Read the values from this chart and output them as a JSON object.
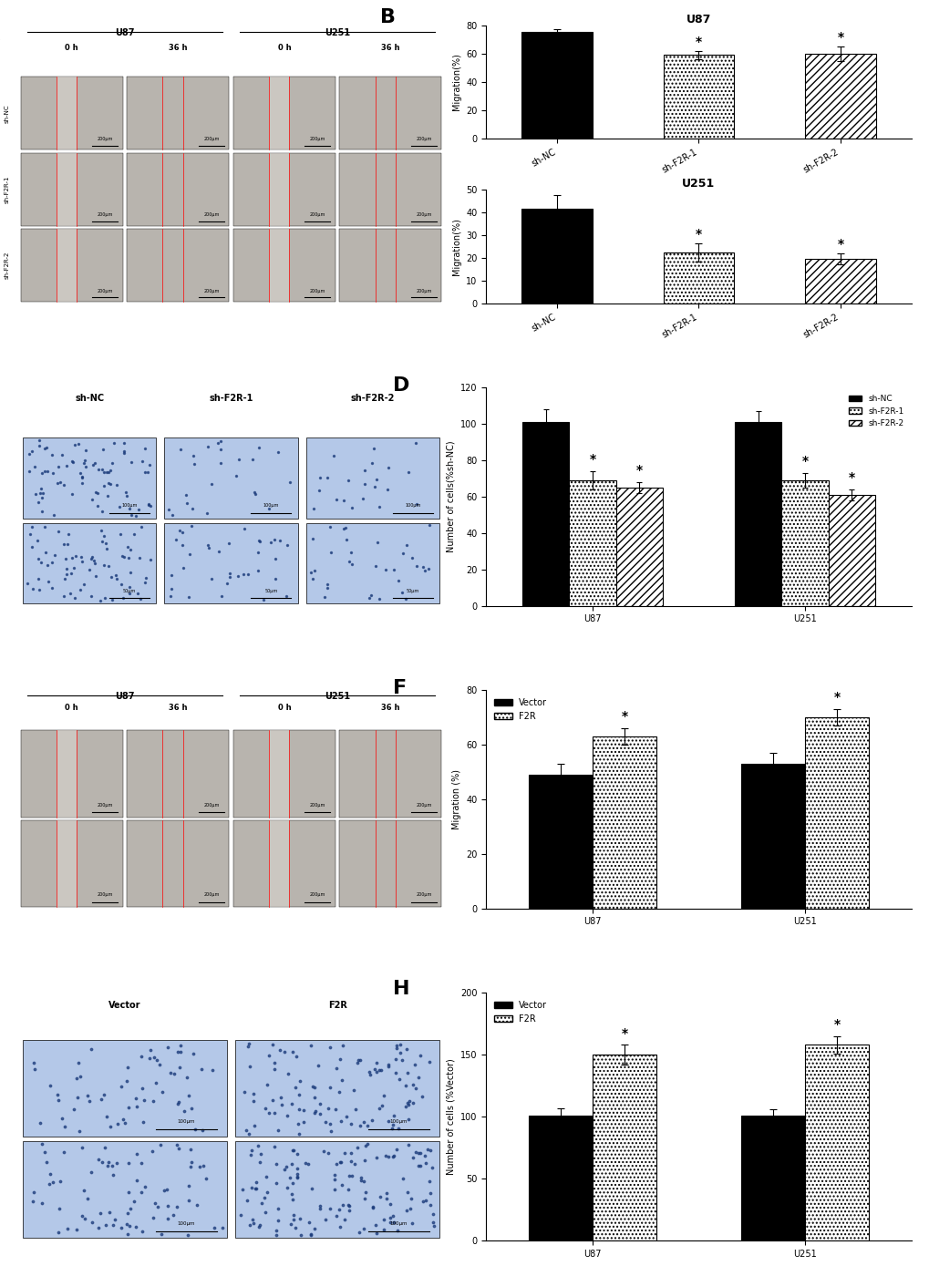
{
  "panel_B_U87": {
    "categories": [
      "sh-NC",
      "sh-F2R-1",
      "sh-F2R-2"
    ],
    "values": [
      75.5,
      59.0,
      60.0
    ],
    "errors": [
      1.5,
      3.0,
      5.0
    ],
    "ylabel": "Migration(%)",
    "title": "U87",
    "ylim": [
      0,
      80
    ],
    "yticks": [
      0,
      20,
      40,
      60,
      80
    ],
    "sig": [
      false,
      true,
      true
    ]
  },
  "panel_B_U251": {
    "categories": [
      "sh-NC",
      "sh-F2R-1",
      "sh-F2R-2"
    ],
    "values": [
      41.5,
      22.5,
      19.5
    ],
    "errors": [
      6.0,
      4.0,
      2.5
    ],
    "ylabel": "Migration(%)",
    "title": "U251",
    "ylim": [
      0,
      50
    ],
    "yticks": [
      0,
      10,
      20,
      30,
      40,
      50
    ],
    "sig": [
      false,
      true,
      true
    ]
  },
  "panel_D": {
    "groups": [
      "U87",
      "U251"
    ],
    "categories": [
      "sh-NC",
      "sh-F2R-1",
      "sh-F2R-2"
    ],
    "values_u87": [
      101,
      69,
      65
    ],
    "values_u251": [
      101,
      69,
      61
    ],
    "errors_u87": [
      7,
      5,
      3
    ],
    "errors_u251": [
      6,
      4,
      3
    ],
    "ylabel": "Number of cells(%sh-NC)",
    "ylim": [
      0,
      120
    ],
    "yticks": [
      0,
      20,
      40,
      60,
      80,
      100,
      120
    ],
    "sig_u87": [
      false,
      true,
      true
    ],
    "sig_u251": [
      false,
      true,
      true
    ]
  },
  "panel_F": {
    "categories": [
      "U87",
      "U251"
    ],
    "values_vector": [
      49,
      53
    ],
    "values_F2R": [
      63,
      70
    ],
    "errors_vector": [
      4,
      4
    ],
    "errors_F2R": [
      3,
      3
    ],
    "ylabel": "Migration (%)",
    "ylim": [
      0,
      80
    ],
    "yticks": [
      0,
      20,
      40,
      60,
      80
    ],
    "sig": [
      true,
      true
    ]
  },
  "panel_H": {
    "categories": [
      "U87",
      "U251"
    ],
    "values_vector": [
      101,
      101
    ],
    "values_F2R": [
      150,
      158
    ],
    "errors_vector": [
      6,
      5
    ],
    "errors_F2R": [
      8,
      7
    ],
    "ylabel": "Number of cells (%Vector)",
    "ylim": [
      0,
      200
    ],
    "yticks": [
      0,
      50,
      100,
      150,
      200
    ],
    "sig": [
      true,
      true
    ]
  },
  "colors": {
    "black": "#000000",
    "white": "#ffffff",
    "dotted_fill": "#ffffff",
    "hatched_fill": "#ffffff"
  }
}
